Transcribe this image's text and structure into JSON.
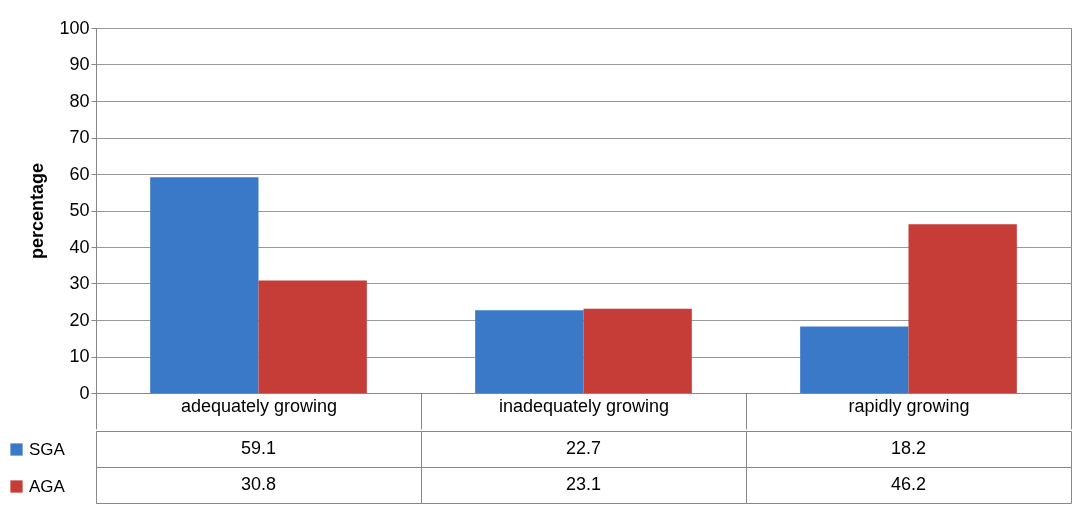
{
  "chart_data": {
    "type": "bar",
    "ylabel": "percentage",
    "categories": [
      "adequately growing",
      "inadequately growing",
      "rapidly growing"
    ],
    "series": [
      {
        "name": "SGA",
        "color": "#3a78c8",
        "values": [
          59.1,
          22.7,
          18.2
        ]
      },
      {
        "name": "AGA",
        "color": "#c63d38",
        "values": [
          30.8,
          23.1,
          46.2
        ]
      }
    ],
    "ylim": [
      0,
      100
    ],
    "yticks": [
      0,
      10,
      20,
      30,
      40,
      50,
      60,
      70,
      80,
      90,
      100
    ],
    "grid": "y",
    "legend": "bottom left",
    "data_labels": true
  }
}
